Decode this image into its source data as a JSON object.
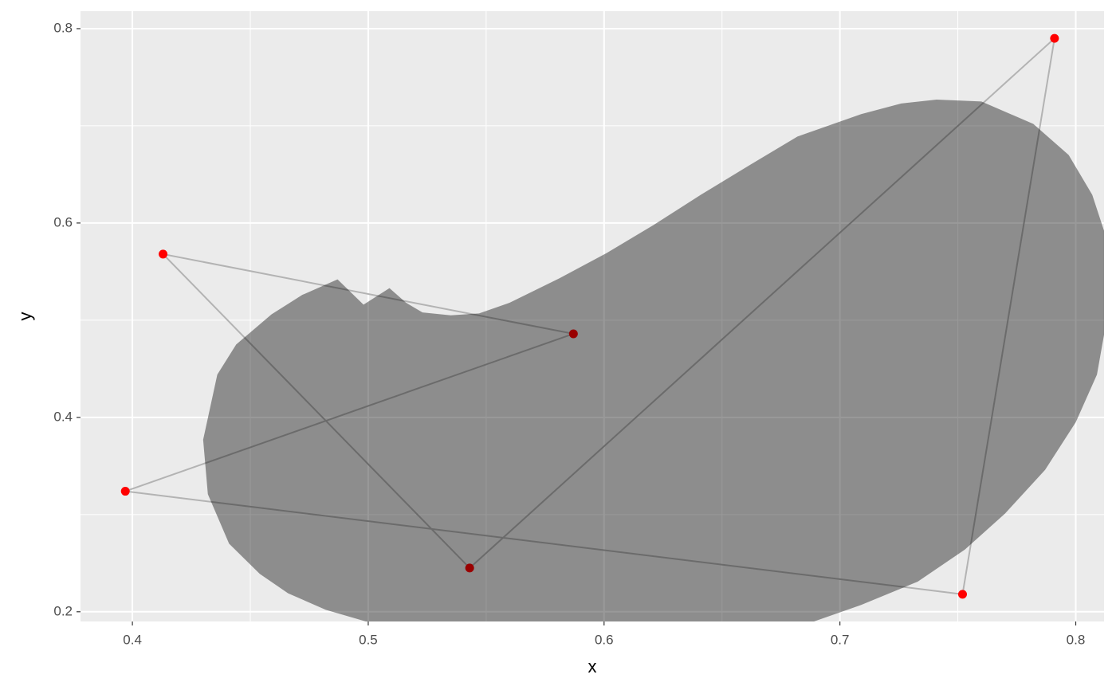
{
  "chart_data": {
    "type": "path",
    "x_label": "x",
    "y_label": "y",
    "xlim": [
      0.378,
      0.812
    ],
    "ylim": [
      0.19,
      0.818
    ],
    "xticks": [
      0.4,
      0.5,
      0.6,
      0.7,
      0.8
    ],
    "yticks": [
      0.2,
      0.4,
      0.6,
      0.8
    ],
    "grid": true,
    "closed": true,
    "series": [
      {
        "color": "#ff0000",
        "x": [
          0.413,
          0.587,
          0.397,
          0.752,
          0.791,
          0.543
        ],
        "values": [
          0.568,
          0.486,
          0.324,
          0.218,
          0.79,
          0.245
        ]
      }
    ],
    "region": {
      "color": "#000000",
      "opacity": 0.4,
      "x": [
        0.43,
        0.436,
        0.444,
        0.459,
        0.472,
        0.487,
        0.498,
        0.509,
        0.516,
        0.523,
        0.535,
        0.547,
        0.56,
        0.581,
        0.601,
        0.621,
        0.641,
        0.662,
        0.682,
        0.709,
        0.726,
        0.741,
        0.76,
        0.782,
        0.797,
        0.807,
        0.812,
        0.812,
        0.809,
        0.8,
        0.787,
        0.77,
        0.753,
        0.733,
        0.709,
        0.689,
        0.499,
        0.482,
        0.466,
        0.454,
        0.441,
        0.432
      ],
      "values": [
        0.377,
        0.444,
        0.475,
        0.506,
        0.526,
        0.542,
        0.516,
        0.533,
        0.518,
        0.508,
        0.505,
        0.507,
        0.518,
        0.543,
        0.569,
        0.598,
        0.629,
        0.66,
        0.689,
        0.712,
        0.723,
        0.727,
        0.725,
        0.702,
        0.67,
        0.629,
        0.592,
        0.485,
        0.444,
        0.395,
        0.346,
        0.301,
        0.264,
        0.231,
        0.207,
        0.19,
        0.19,
        0.202,
        0.219,
        0.239,
        0.27,
        0.321
      ]
    }
  }
}
